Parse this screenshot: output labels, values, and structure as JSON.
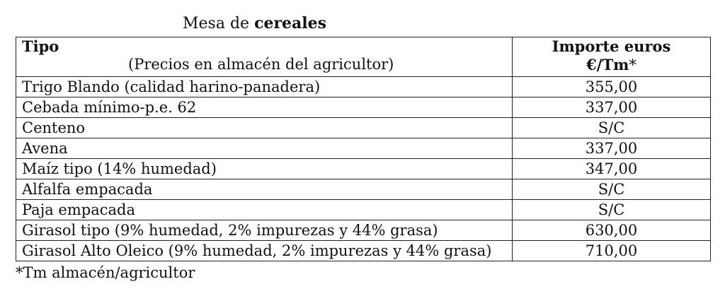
{
  "title": {
    "prefix": "Mesa de",
    "bold": "cereales"
  },
  "table": {
    "header": {
      "col1_title": "Tipo",
      "col1_subtitle": "(Precios en almacén del agricultor)",
      "col2_line1": "Importe euros",
      "col2_line2_bold": "€/Tm",
      "col2_line2_mark": "*"
    },
    "rows": [
      [
        "Trigo Blando (calidad harino-panadera)",
        "355,00"
      ],
      [
        "Cebada mínimo-p.e. 62",
        "337,00"
      ],
      [
        "Centeno",
        "S/C"
      ],
      [
        "Avena",
        "337,00"
      ],
      [
        "Maíz tipo (14% humedad)",
        "347,00"
      ],
      [
        "Alfalfa empacada",
        "S/C"
      ],
      [
        "Paja empacada",
        "S/C"
      ],
      [
        "Girasol tipo (9% humedad, 2% impurezas y 44% grasa)",
        "630,00"
      ],
      [
        "Girasol Alto Oleico (9% humedad, 2% impurezas y 44% grasa)",
        "710,00"
      ]
    ]
  },
  "footnote": "*Tm almacén/agricultor"
}
